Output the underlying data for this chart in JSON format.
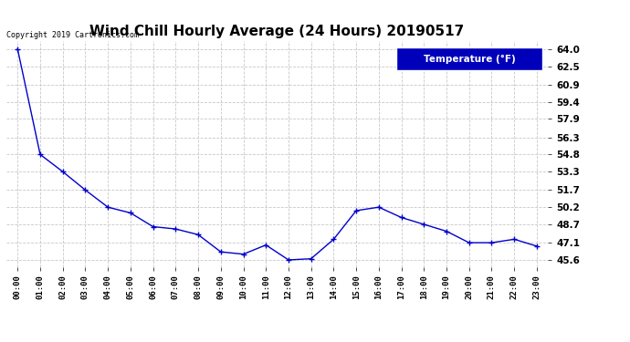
{
  "title": "Wind Chill Hourly Average (24 Hours) 20190517",
  "copyright_text": "Copyright 2019 Cartronics.com",
  "legend_label": "Temperature (°F)",
  "x_labels": [
    "00:00",
    "01:00",
    "02:00",
    "03:00",
    "04:00",
    "05:00",
    "06:00",
    "07:00",
    "08:00",
    "09:00",
    "10:00",
    "11:00",
    "12:00",
    "13:00",
    "14:00",
    "15:00",
    "16:00",
    "17:00",
    "18:00",
    "19:00",
    "20:00",
    "21:00",
    "22:00",
    "23:00"
  ],
  "y_values": [
    64.0,
    54.8,
    53.3,
    51.7,
    50.2,
    49.7,
    48.5,
    48.3,
    47.8,
    46.3,
    46.1,
    46.9,
    45.6,
    45.7,
    47.4,
    49.9,
    50.2,
    49.3,
    48.7,
    48.1,
    47.1,
    47.1,
    47.4,
    46.8
  ],
  "y_ticks": [
    45.6,
    47.1,
    48.7,
    50.2,
    51.7,
    53.3,
    54.8,
    56.3,
    57.9,
    59.4,
    60.9,
    62.5,
    64.0
  ],
  "ylim_min": 45.0,
  "ylim_max": 64.7,
  "line_color": "#0000cc",
  "background_color": "#ffffff",
  "grid_color": "#c8c8c8",
  "title_fontsize": 11,
  "legend_bg": "#0000bb",
  "legend_text_color": "#ffffff"
}
